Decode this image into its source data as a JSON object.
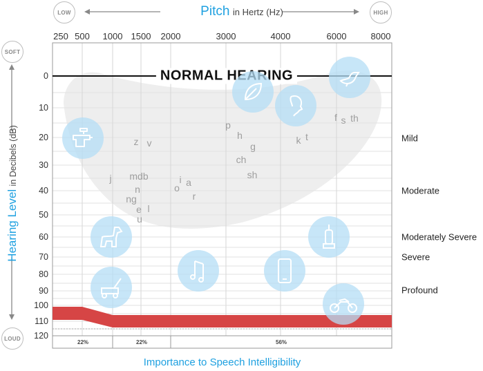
{
  "pitch": {
    "title": "Pitch",
    "unit": "in Hertz (Hz)",
    "low_label": "LOW",
    "high_label": "HIGH"
  },
  "level": {
    "title": "Hearing Level",
    "unit": "in Decibels (dB)",
    "soft_label": "SOFT",
    "loud_label": "LOUD"
  },
  "x_ticks": [
    "250",
    "500",
    "1000",
    "1500",
    "2000",
    "3000",
    "4000",
    "6000",
    "8000"
  ],
  "y_ticks": [
    "0",
    "10",
    "20",
    "30",
    "40",
    "50",
    "60",
    "70",
    "80",
    "90",
    "100",
    "110",
    "120"
  ],
  "severity": [
    "Mild",
    "Moderate",
    "Moderately Severe",
    "Severe",
    "Profound"
  ],
  "normal_hearing": "NORMAL HEARING",
  "speech_sounds": [
    "z",
    "v",
    "j",
    "mdb",
    "n",
    "ng",
    "e",
    "l",
    "u",
    "o",
    "i",
    "a",
    "r",
    "p",
    "h",
    "g",
    "ch",
    "sh",
    "k",
    "t",
    "f",
    "s",
    "th"
  ],
  "importance": {
    "title": "Importance to Speech Intelligibility",
    "segments": [
      "22%",
      "22%",
      "56%"
    ]
  },
  "icons": [
    "faucet-icon",
    "leaf-icon",
    "bird-icon",
    "child-icon",
    "dog-icon",
    "vacuum-icon",
    "lawnmower-icon",
    "music-note-icon",
    "phone-icon",
    "motorcycle-icon"
  ],
  "colors": {
    "accent": "#1ea0e0",
    "loss_band": "#d64545",
    "bubble": "#b4def5",
    "speech_banana": "#eeeeee"
  }
}
